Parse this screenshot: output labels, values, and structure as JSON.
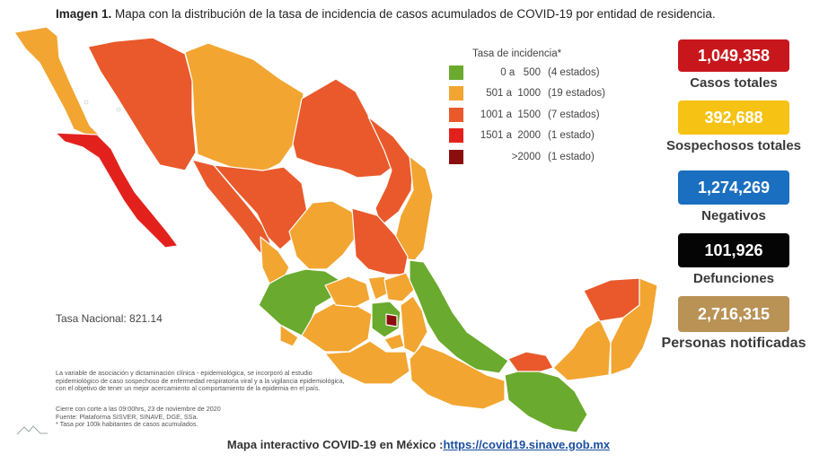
{
  "title": {
    "bold": "Imagen 1.",
    "text": "Mapa con la distribución de la tasa de incidencia de casos acumulados de COVID-19 por entidad de residencia."
  },
  "legend": {
    "title": "Tasa de incidencia*",
    "items": [
      {
        "range": "0 a   500",
        "count": "(4 estados)",
        "color": "#6aaa2e"
      },
      {
        "range": "501 a  1000",
        "count": "(19 estados)",
        "color": "#f2a531"
      },
      {
        "range": "1001 a  1500",
        "count": "(7 estados)",
        "color": "#e9592b"
      },
      {
        "range": "1501 a  2000",
        "count": "(1 estado)",
        "color": "#e3211c"
      },
      {
        "range": ">2000",
        "count": "(1 estado)",
        "color": "#8b0e0e"
      }
    ]
  },
  "tasa_nacional": "Tasa Nacional: 821.14",
  "notes": {
    "methodology": [
      "La variable de asociación y dictaminación clínica - epidemiológica, se incorporó al estudio",
      "epidemiológico de caso sospechoso de enfermedad respiratoria viral y a la vigilancia epidemiológica,",
      "con el objetivo de tener un mejor acercamiento al comportamiento de la epidemia en el país."
    ],
    "source": [
      "Cierre con corte a las 09:00hrs, 23 de noviembre de 2020",
      "Fuente: Plataforma SISVER, SINAVE, DGE, SSa.",
      "* Tasa por 100k habitantes de casos acumulados."
    ]
  },
  "stats": [
    {
      "value": "1,049,358",
      "label": "Casos totales",
      "color": "#c8171c"
    },
    {
      "value": "392,688",
      "label": "Sospechosos totales",
      "color": "#f6c315"
    },
    {
      "value": "1,274,269",
      "label": "Negativos",
      "color": "#1a6fc0"
    },
    {
      "value": "101,926",
      "label": "Defunciones",
      "color": "#050505"
    },
    {
      "value": "2,716,315",
      "label": "Personas notificadas",
      "color": "#b99256"
    }
  ],
  "footer": {
    "text": "Mapa interactivo COVID-19 en México :",
    "link": "https://covid19.sinave.gob.mx"
  }
}
